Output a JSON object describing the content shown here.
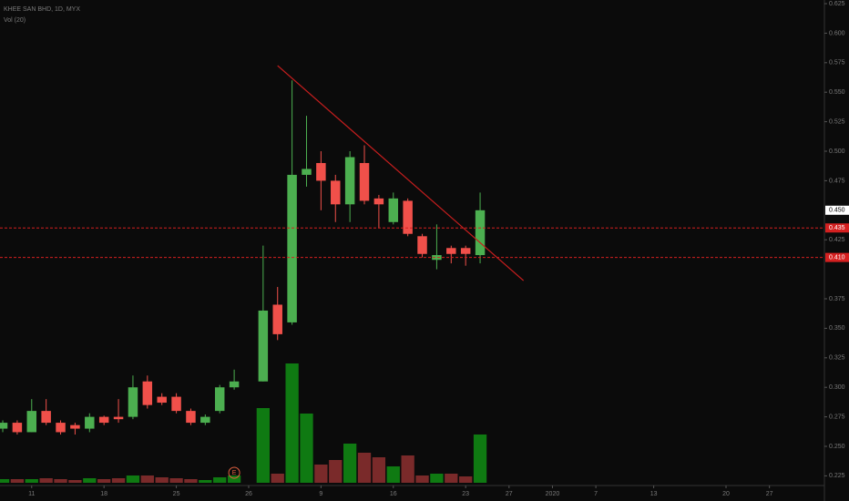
{
  "chart_data": {
    "type": "candlestick",
    "title": "KHEE SAN BHD, 1D, MYX",
    "subtitle": "Vol (20)",
    "x": [
      0,
      1,
      2,
      3,
      4,
      5,
      6,
      7,
      8,
      9,
      10,
      11,
      12,
      13,
      14,
      15,
      16,
      18,
      19,
      20,
      21,
      22,
      23,
      24,
      25,
      26,
      27,
      28,
      29,
      30,
      31,
      32,
      33
    ],
    "open": [
      0.265,
      0.27,
      0.262,
      0.28,
      0.27,
      0.268,
      0.265,
      0.275,
      0.275,
      0.275,
      0.305,
      0.292,
      0.292,
      0.28,
      0.27,
      0.28,
      0.3,
      0.305,
      0.37,
      0.355,
      0.48,
      0.49,
      0.475,
      0.455,
      0.49,
      0.46,
      0.44,
      0.458,
      0.428,
      0.408,
      0.418,
      0.418,
      0.412
    ],
    "high": [
      0.272,
      0.272,
      0.29,
      0.29,
      0.272,
      0.27,
      0.278,
      0.276,
      0.29,
      0.31,
      0.31,
      0.295,
      0.295,
      0.282,
      0.277,
      0.302,
      0.315,
      0.42,
      0.385,
      0.56,
      0.53,
      0.5,
      0.48,
      0.5,
      0.505,
      0.463,
      0.465,
      0.46,
      0.43,
      0.438,
      0.42,
      0.42,
      0.465
    ],
    "low": [
      0.262,
      0.26,
      0.262,
      0.268,
      0.26,
      0.26,
      0.262,
      0.268,
      0.27,
      0.273,
      0.282,
      0.285,
      0.278,
      0.268,
      0.268,
      0.278,
      0.298,
      0.305,
      0.34,
      0.353,
      0.47,
      0.45,
      0.44,
      0.44,
      0.455,
      0.435,
      0.438,
      0.428,
      0.41,
      0.4,
      0.405,
      0.403,
      0.405
    ],
    "close": [
      0.27,
      0.262,
      0.28,
      0.27,
      0.262,
      0.265,
      0.275,
      0.27,
      0.273,
      0.3,
      0.285,
      0.287,
      0.28,
      0.27,
      0.275,
      0.3,
      0.305,
      0.365,
      0.345,
      0.48,
      0.485,
      0.475,
      0.455,
      0.495,
      0.458,
      0.455,
      0.46,
      0.43,
      0.413,
      0.412,
      0.413,
      0.413,
      0.45
    ],
    "volume": [
      4,
      4,
      4,
      5,
      4,
      3,
      5,
      4,
      5,
      8,
      8,
      6,
      5,
      4,
      3,
      6,
      8,
      82,
      10,
      131,
      76,
      20,
      25,
      43,
      33,
      28,
      18,
      30,
      8,
      10,
      10,
      7,
      53
    ],
    "up_color": "#4caf50",
    "down_color": "#f0504a",
    "volume_up_color": "#0f7a12",
    "volume_down_color": "#7a2a2a",
    "xlim": [
      -0.19,
      56.8
    ],
    "ylim": [
      0.2037,
      0.6281
    ],
    "y2lim": [
      0,
      530
    ],
    "xticks": [
      {
        "value": 2,
        "label": "11"
      },
      {
        "value": 7,
        "label": "18"
      },
      {
        "value": 12,
        "label": "25"
      },
      {
        "value": 17,
        "label": "26"
      },
      {
        "value": 22,
        "label": "9"
      },
      {
        "value": 27,
        "label": "16"
      },
      {
        "value": 32,
        "label": "23"
      },
      {
        "value": 35,
        "label": "27"
      },
      {
        "value": 38,
        "label": "2020"
      },
      {
        "value": 41,
        "label": "7"
      },
      {
        "value": 45,
        "label": "13"
      },
      {
        "value": 50,
        "label": "20"
      },
      {
        "value": 53,
        "label": "27"
      }
    ],
    "yticks": [
      0.625,
      {
        "value": 0.6,
        "label": "0.600"
      },
      0.575,
      {
        "value": 0.55,
        "label": "0.550"
      },
      0.525,
      {
        "value": 0.5,
        "label": "0.500"
      },
      0.475,
      0.425,
      0.375,
      {
        "value": 0.35,
        "label": "0.350"
      },
      0.325,
      {
        "value": 0.3,
        "label": "0.300"
      },
      0.275,
      {
        "value": 0.25,
        "label": "0.250"
      },
      0.225
    ],
    "price_lines": [
      0.435,
      {
        "value": 0.41,
        "label": "0.410"
      }
    ],
    "last_price": {
      "value": 0.45,
      "label": "0.450"
    },
    "trendline": {
      "x": [
        19,
        36
      ],
      "y": [
        0.5725,
        0.3904
      ]
    },
    "event_marker": {
      "x": 16,
      "label": "E"
    }
  }
}
